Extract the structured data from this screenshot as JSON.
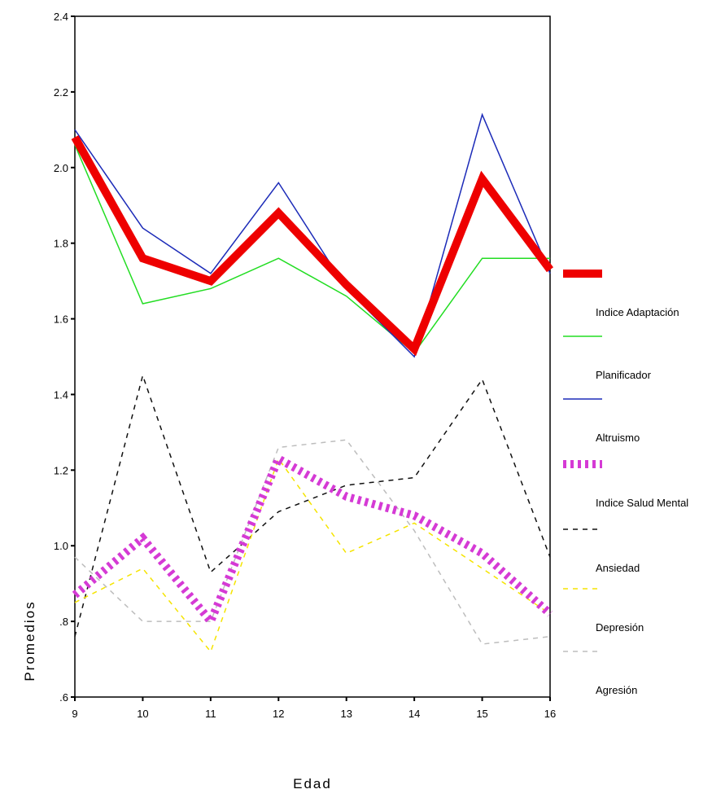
{
  "chart_data": {
    "type": "line",
    "title": "",
    "xlabel": "Edad",
    "ylabel": "Promedios",
    "x": [
      9,
      10,
      11,
      12,
      13,
      14,
      15,
      16
    ],
    "x_tick_labels": [
      "9",
      "10",
      "11",
      "12",
      "13",
      "14",
      "15",
      "16"
    ],
    "ylim": [
      0.6,
      2.4
    ],
    "y_ticks": [
      0.6,
      0.8,
      1.0,
      1.2,
      1.4,
      1.6,
      1.8,
      2.0,
      2.2,
      2.4
    ],
    "y_tick_labels": [
      ".6",
      ".8",
      "1.0",
      "1.2",
      "1.4",
      "1.6",
      "1.8",
      "2.0",
      "2.2",
      "2.4"
    ],
    "grid": false,
    "legend_position": "right",
    "series": [
      {
        "name": "Indice Adaptación",
        "color": "#ee0000",
        "style": "solid-thick",
        "values": [
          2.08,
          1.76,
          1.7,
          1.88,
          1.69,
          1.52,
          1.97,
          1.73
        ]
      },
      {
        "name": "Planificador",
        "color": "#22dd22",
        "style": "solid",
        "values": [
          2.06,
          1.64,
          1.68,
          1.76,
          1.66,
          1.51,
          1.76,
          1.76
        ]
      },
      {
        "name": "Altruismo",
        "color": "#1c2bb8",
        "style": "solid",
        "values": [
          2.1,
          1.84,
          1.72,
          1.96,
          1.68,
          1.5,
          2.14,
          1.72
        ]
      },
      {
        "name": "Indice Salud Mental",
        "color": "#d53ad5",
        "style": "dotted-thick",
        "values": [
          0.87,
          1.02,
          0.8,
          1.23,
          1.13,
          1.08,
          0.98,
          0.82
        ]
      },
      {
        "name": "Ansiedad",
        "color": "#111111",
        "style": "dashed",
        "values": [
          0.76,
          1.45,
          0.93,
          1.09,
          1.16,
          1.18,
          1.44,
          0.97
        ]
      },
      {
        "name": "Depresión",
        "color": "#f5e400",
        "style": "dashed",
        "values": [
          0.85,
          0.94,
          0.72,
          1.23,
          0.98,
          1.06,
          0.94,
          0.82
        ]
      },
      {
        "name": "Agresión",
        "color": "#bdbdbd",
        "style": "dashed",
        "values": [
          0.97,
          0.8,
          0.8,
          1.26,
          1.28,
          1.04,
          0.74,
          0.76
        ]
      }
    ]
  }
}
